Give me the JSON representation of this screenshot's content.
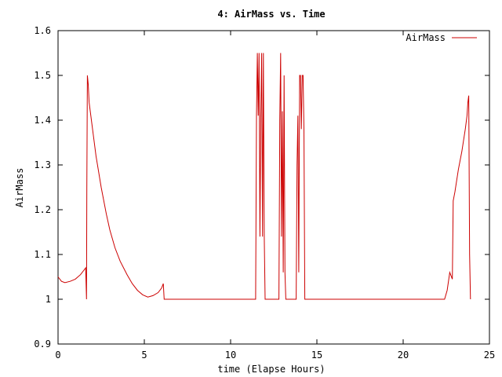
{
  "chart_data": {
    "type": "line",
    "title": "4: AirMass vs. Time",
    "xlabel": "time (Elapse Hours)",
    "ylabel": "AirMass",
    "xlim": [
      0,
      25
    ],
    "ylim": [
      0.9,
      1.6
    ],
    "x_ticks": [
      "0",
      "5",
      "10",
      "15",
      "20",
      "25"
    ],
    "y_ticks": [
      "0.9",
      "1",
      "1.1",
      "1.2",
      "1.3",
      "1.4",
      "1.5",
      "1.6"
    ],
    "grid": false,
    "legend": "top-right",
    "series": [
      {
        "name": "AirMass",
        "color": "#cc0000",
        "x": [
          0.0,
          0.2,
          0.4,
          0.7,
          1.0,
          1.3,
          1.5,
          1.6,
          1.65,
          1.67,
          1.7,
          1.75,
          1.8,
          2.0,
          2.2,
          2.5,
          2.8,
          3.0,
          3.3,
          3.6,
          4.0,
          4.3,
          4.6,
          4.9,
          5.2,
          5.5,
          5.8,
          6.0,
          6.05,
          6.1,
          6.15,
          6.2,
          8.0,
          10.0,
          11.0,
          11.45,
          11.5,
          11.55,
          11.6,
          11.65,
          11.7,
          11.75,
          11.8,
          11.85,
          11.9,
          11.95,
          12.0,
          12.1,
          12.5,
          12.8,
          12.85,
          12.9,
          12.95,
          13.0,
          13.05,
          13.1,
          13.15,
          13.2,
          13.8,
          13.85,
          13.9,
          13.95,
          14.0,
          14.05,
          14.1,
          14.15,
          14.2,
          14.25,
          14.3,
          14.35,
          14.4,
          15.0,
          18.0,
          20.0,
          22.4,
          22.55,
          22.7,
          22.85,
          22.9,
          23.0,
          23.2,
          23.4,
          23.6,
          23.7,
          23.75,
          23.8,
          23.85,
          23.9
        ],
        "y": [
          1.05,
          1.04,
          1.037,
          1.04,
          1.045,
          1.055,
          1.065,
          1.07,
          1.0,
          1.25,
          1.5,
          1.48,
          1.44,
          1.38,
          1.32,
          1.25,
          1.19,
          1.155,
          1.115,
          1.085,
          1.055,
          1.035,
          1.02,
          1.01,
          1.005,
          1.008,
          1.015,
          1.025,
          1.03,
          1.035,
          1.0,
          1.0,
          1.0,
          1.0,
          1.0,
          1.0,
          1.41,
          1.55,
          1.41,
          1.55,
          1.14,
          1.41,
          1.55,
          1.14,
          1.55,
          1.14,
          1.0,
          1.0,
          1.0,
          1.0,
          1.4,
          1.55,
          1.14,
          1.42,
          1.06,
          1.5,
          1.06,
          1.0,
          1.0,
          1.3,
          1.41,
          1.06,
          1.5,
          1.5,
          1.38,
          1.5,
          1.5,
          1.38,
          1.0,
          1.0,
          1.0,
          1.0,
          1.0,
          1.0,
          1.0,
          1.02,
          1.06,
          1.045,
          1.22,
          1.24,
          1.29,
          1.33,
          1.38,
          1.41,
          1.44,
          1.455,
          1.1,
          1.0
        ]
      }
    ]
  }
}
